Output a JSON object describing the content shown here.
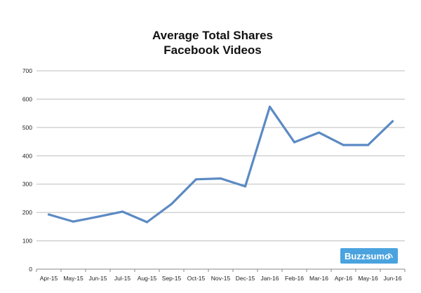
{
  "chart_data": {
    "type": "line",
    "title": "Average Total Shares",
    "subtitle": "Facebook Videos",
    "xlabel": "",
    "ylabel": "",
    "categories": [
      "Apr-15",
      "May-15",
      "Jun-15",
      "Jul-15",
      "Aug-15",
      "Sep-15",
      "Oct-15",
      "Nov-15",
      "Dec-15",
      "Jan-16",
      "Feb-16",
      "Mar-16",
      "Apr-16",
      "May-16",
      "Jun-16"
    ],
    "series": [
      {
        "values": [
          193,
          168,
          185,
          203,
          166,
          230,
          317,
          320,
          292,
          573,
          448,
          482,
          438,
          438,
          522
        ],
        "color": "#5b8ac4"
      }
    ],
    "ylim": [
      0,
      700
    ],
    "yticks": [
      0,
      100,
      200,
      300,
      400,
      500,
      600,
      700
    ],
    "grid": true,
    "legend": "none"
  },
  "brand": {
    "logo_text": "Buzzsumo",
    "logo_bg": "#4aa3df",
    "logo_icon": "signal-waves-icon"
  },
  "colors": {
    "grid": "#bdbdbd",
    "axis": "#888888",
    "line": "#5b8ac4"
  }
}
